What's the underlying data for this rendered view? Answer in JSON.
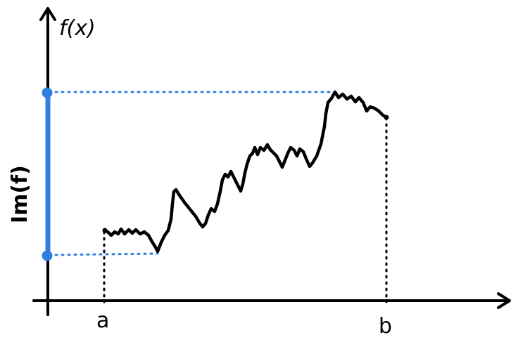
{
  "diagram": {
    "y_axis_label": "f(x)",
    "x_label_a": "a",
    "x_label_b": "b",
    "range_label": "Im(f)"
  },
  "colors": {
    "curve": "#000000",
    "axes": "#000000",
    "range_highlight": "#2f7fe0",
    "guide_dotted_black": "#000000",
    "guide_dotted_blue": "#2f7fe0"
  }
}
